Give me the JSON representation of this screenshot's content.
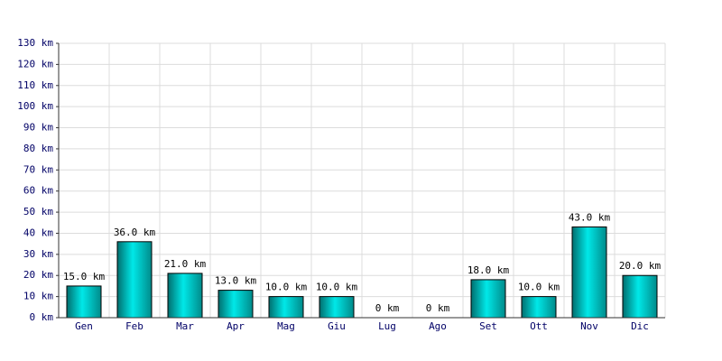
{
  "chart_data": {
    "type": "bar",
    "categories": [
      "Gen",
      "Feb",
      "Mar",
      "Apr",
      "Mag",
      "Giu",
      "Lug",
      "Ago",
      "Set",
      "Ott",
      "Nov",
      "Dic"
    ],
    "values": [
      15,
      36,
      21,
      13,
      10,
      10,
      0,
      0,
      18,
      10,
      43,
      20
    ],
    "value_labels": [
      "15.0 km",
      "36.0 km",
      "21.0 km",
      "13.0 km",
      "10.0 km",
      "10.0 km",
      "0 km",
      "0 km",
      "18.0 km",
      "10.0 km",
      "43.0 km",
      "20.0 km"
    ],
    "color": "#00e8e8",
    "ylim": [
      0,
      130
    ],
    "yticks": [
      {
        "value": 0,
        "label": "0 km"
      },
      {
        "value": 10,
        "label": "10 km"
      },
      {
        "value": 20,
        "label": "20 km"
      },
      {
        "value": 30,
        "label": "30 km"
      },
      {
        "value": 40,
        "label": "40 km"
      },
      {
        "value": 50,
        "label": "50 km"
      },
      {
        "value": 60,
        "label": "60 km"
      },
      {
        "value": 70,
        "label": "70 km"
      },
      {
        "value": 80,
        "label": "80 km"
      },
      {
        "value": 90,
        "label": "90 km"
      },
      {
        "value": 100,
        "label": "100 km"
      },
      {
        "value": 110,
        "label": "110 km"
      },
      {
        "value": 120,
        "label": "120 km"
      },
      {
        "value": 130,
        "label": "130 km"
      }
    ],
    "grid": true
  }
}
